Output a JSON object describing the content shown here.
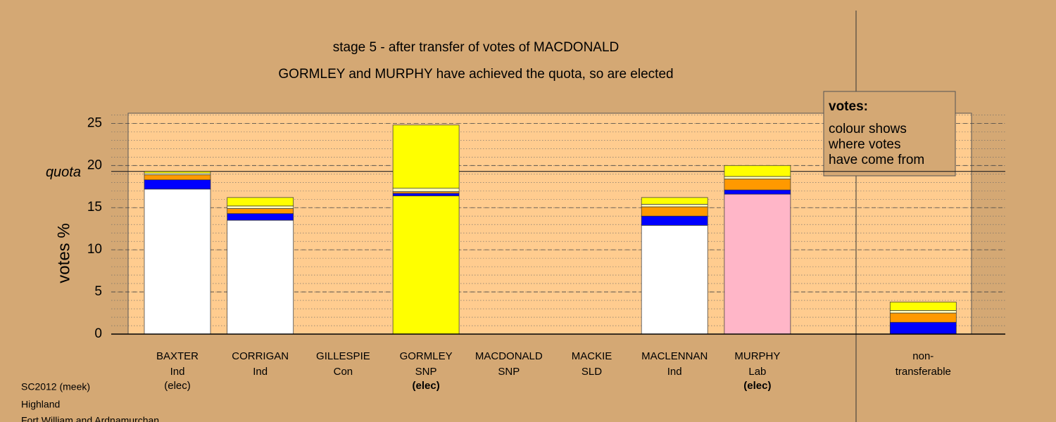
{
  "chart_data": {
    "type": "stacked_bar",
    "title": "stage 5 - after transfer of votes of MACDONALD",
    "subtitle": "GORMLEY and MURPHY have achieved the quota, so are elected",
    "y_label": "votes %",
    "categories": [
      "BAXTER",
      "CORRIGAN",
      "GILLESPIE",
      "GORMLEY",
      "MACDONALD",
      "MACKIE",
      "MACLENNAN",
      "MURPHY",
      null,
      "non-"
    ],
    "parties": [
      "Ind",
      "Ind",
      "Con",
      "SNP",
      "SNP",
      "SLD",
      "Ind",
      "Lab",
      null,
      "transferable"
    ],
    "status": [
      "(elec)",
      null,
      null,
      "(elec)",
      null,
      null,
      null,
      "(elec)",
      null,
      null
    ],
    "status_bold": [
      false,
      false,
      false,
      true,
      false,
      false,
      false,
      true,
      false,
      false
    ],
    "series": [
      {
        "colors": [
          "#ffffff",
          "#ffffff",
          "#0000ff",
          "#ffff00",
          "#ffff00",
          "#ff9900",
          "#ffffff",
          "#ffb6c8",
          null,
          "#ffffff"
        ],
        "values": [
          17.2,
          13.5,
          0,
          16.4,
          0,
          0,
          12.9,
          16.6,
          null,
          0
        ]
      },
      {
        "color": "#0000ff",
        "values": [
          1.1,
          0.8,
          0,
          0.3,
          0,
          0,
          1.1,
          0.5,
          null,
          1.4
        ]
      },
      {
        "color": "#ff9900",
        "values": [
          0.6,
          0.6,
          0,
          0.2,
          0,
          0,
          1.1,
          1.3,
          null,
          1.1
        ]
      },
      {
        "color": "#ffffc0",
        "values": [
          0.2,
          0.3,
          0,
          0.4,
          0,
          0,
          0.3,
          0.3,
          null,
          0.3
        ]
      },
      {
        "color": "#ffff00",
        "values": [
          0.2,
          1.0,
          0,
          7.5,
          0,
          0,
          0.8,
          1.3,
          null,
          1.0
        ]
      }
    ],
    "quota": {
      "value": 19.3,
      "label": "quota"
    },
    "ylim": [
      0,
      26.2
    ],
    "yticks": [
      0,
      5,
      10,
      15,
      20,
      25
    ],
    "grid": true,
    "legend": {
      "title": "votes:",
      "lines": [
        "colour shows",
        "where votes",
        "have come from"
      ]
    },
    "footer": [
      "SC2012 (meek)",
      "Highland",
      "Fort William and Ardnamurchan"
    ]
  }
}
